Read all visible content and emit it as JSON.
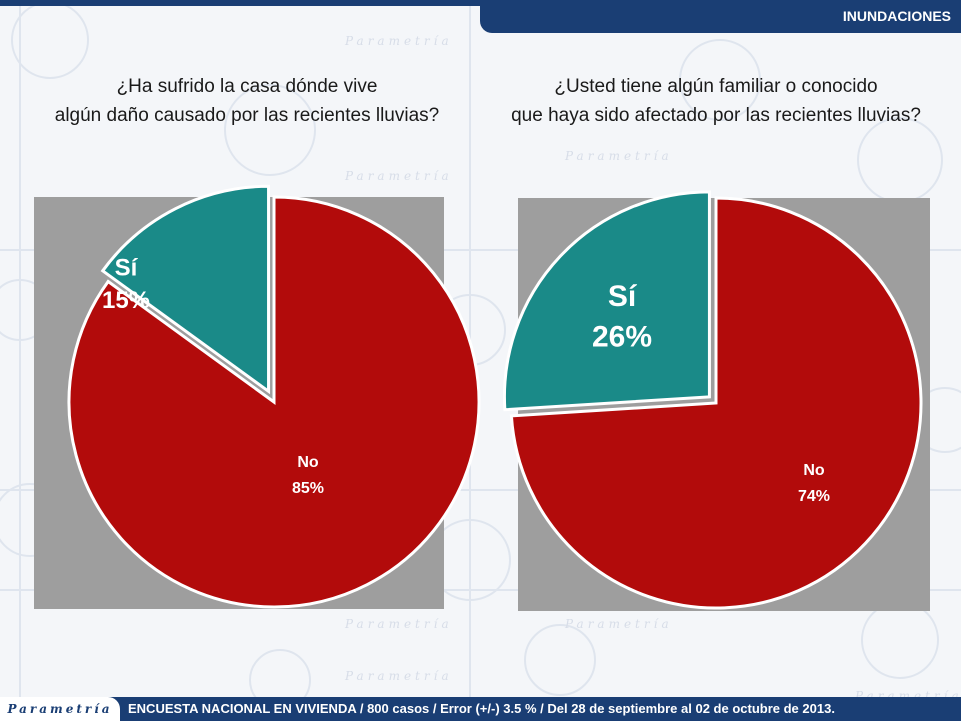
{
  "header": {
    "title": "INUNDACIONES"
  },
  "footer": {
    "brand": "Parametría",
    "note": "ENCUESTA NACIONAL EN VIVIENDA / 800 casos / Error (+/-) 3.5 % / Del 28 de septiembre al 02 de octubre de 2013."
  },
  "watermark": {
    "text": "Parametría"
  },
  "questions": [
    {
      "line1": "¿Ha sufrido la casa dónde vive",
      "line2": "algún daño causado por las recientes lluvias?"
    },
    {
      "line1": "¿Usted tiene algún familiar o conocido",
      "line2": "que haya sido afectado por las recientes lluvias?"
    }
  ],
  "colors": {
    "si": "#1a8a88",
    "no": "#b20b0b",
    "plot_bg": "#9e9e9e",
    "brand": "#1a3e74"
  },
  "chart_data": [
    {
      "type": "pie",
      "title": "¿Ha sufrido la casa dónde vive algún daño causado por las recientes lluvias?",
      "slices": [
        {
          "label": "Sí",
          "value": 15,
          "display": "15%"
        },
        {
          "label": "No",
          "value": 85,
          "display": "85%"
        }
      ]
    },
    {
      "type": "pie",
      "title": "¿Usted tiene algún familiar o conocido que haya sido afectado por las recientes lluvias?",
      "slices": [
        {
          "label": "Sí",
          "value": 26,
          "display": "26%"
        },
        {
          "label": "No",
          "value": 74,
          "display": "74%"
        }
      ]
    }
  ]
}
